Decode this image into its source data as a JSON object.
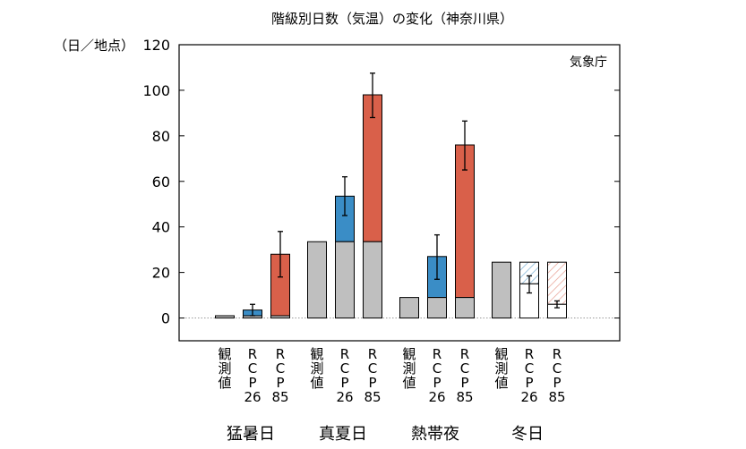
{
  "chart_data": {
    "type": "bar",
    "title": "階級別日数（気温）の変化（神奈川県）",
    "ylabel": "（日／地点）",
    "source": "気象庁",
    "ylim": [
      -10,
      120
    ],
    "yticks": [
      0,
      20,
      40,
      60,
      80,
      100,
      120
    ],
    "bar_labels": {
      "obs": [
        "観",
        "測",
        "値"
      ],
      "rcp26": [
        "R",
        "C",
        "P",
        "26"
      ],
      "rcp85": [
        "R",
        "C",
        "P",
        "85"
      ]
    },
    "groups": [
      {
        "name": "猛暑日",
        "bars": [
          {
            "kind": "obs",
            "value": 1
          },
          {
            "kind": "rcp26",
            "base": 1,
            "total": 3.5,
            "err": [
              1,
              6
            ]
          },
          {
            "kind": "rcp85",
            "base": 1,
            "total": 28,
            "err": [
              18,
              38
            ]
          }
        ]
      },
      {
        "name": "真夏日",
        "bars": [
          {
            "kind": "obs",
            "value": 33.5
          },
          {
            "kind": "rcp26",
            "base": 33.5,
            "total": 53.5,
            "err": [
              45,
              62
            ]
          },
          {
            "kind": "rcp85",
            "base": 33.5,
            "total": 98,
            "err": [
              88,
              107.5
            ]
          }
        ]
      },
      {
        "name": "熱帯夜",
        "bars": [
          {
            "kind": "obs",
            "value": 9
          },
          {
            "kind": "rcp26",
            "base": 9,
            "total": 27,
            "err": [
              17,
              36.5
            ]
          },
          {
            "kind": "rcp85",
            "base": 9,
            "total": 76,
            "err": [
              65,
              86.5
            ]
          }
        ]
      },
      {
        "name": "冬日",
        "bars": [
          {
            "kind": "obs",
            "value": 24.5
          },
          {
            "kind": "rcp26_dec",
            "remaining": 15,
            "total": 24.5,
            "err": [
              11,
              18.5
            ]
          },
          {
            "kind": "rcp85_dec",
            "remaining": 6,
            "total": 24.5,
            "err": [
              4.5,
              7.5
            ]
          }
        ]
      }
    ],
    "colors": {
      "obs": "#bfbfbf",
      "rcp26": "#3a8dc6",
      "rcp85": "#d9604a",
      "hatch26": "#7fb3d6",
      "hatch85": "#e8a093"
    }
  }
}
